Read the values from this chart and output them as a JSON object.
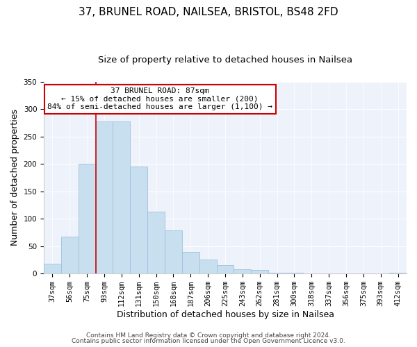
{
  "title": "37, BRUNEL ROAD, NAILSEA, BRISTOL, BS48 2FD",
  "subtitle": "Size of property relative to detached houses in Nailsea",
  "xlabel": "Distribution of detached houses by size in Nailsea",
  "ylabel": "Number of detached properties",
  "bar_color": "#c8dff0",
  "bar_edge_color": "#a0c0dc",
  "categories": [
    "37sqm",
    "56sqm",
    "75sqm",
    "93sqm",
    "112sqm",
    "131sqm",
    "150sqm",
    "168sqm",
    "187sqm",
    "206sqm",
    "225sqm",
    "243sqm",
    "262sqm",
    "281sqm",
    "300sqm",
    "318sqm",
    "337sqm",
    "356sqm",
    "375sqm",
    "393sqm",
    "412sqm"
  ],
  "values": [
    18,
    68,
    200,
    278,
    278,
    195,
    113,
    79,
    40,
    25,
    15,
    8,
    7,
    1,
    1,
    0,
    0,
    0,
    0,
    0,
    2
  ],
  "ylim": [
    0,
    350
  ],
  "yticks": [
    0,
    50,
    100,
    150,
    200,
    250,
    300,
    350
  ],
  "vline_x": 2.5,
  "vline_color": "#cc0000",
  "annotation_title": "37 BRUNEL ROAD: 87sqm",
  "annotation_line1": "← 15% of detached houses are smaller (200)",
  "annotation_line2": "84% of semi-detached houses are larger (1,100) →",
  "annotation_box_edgecolor": "#cc0000",
  "footer1": "Contains HM Land Registry data © Crown copyright and database right 2024.",
  "footer2": "Contains public sector information licensed under the Open Government Licence v3.0.",
  "background_color": "#ffffff",
  "plot_bg_color": "#eef2fa",
  "title_fontsize": 11,
  "subtitle_fontsize": 9.5,
  "axis_label_fontsize": 9,
  "tick_fontsize": 7.5,
  "footer_fontsize": 6.5,
  "annotation_fontsize": 8
}
